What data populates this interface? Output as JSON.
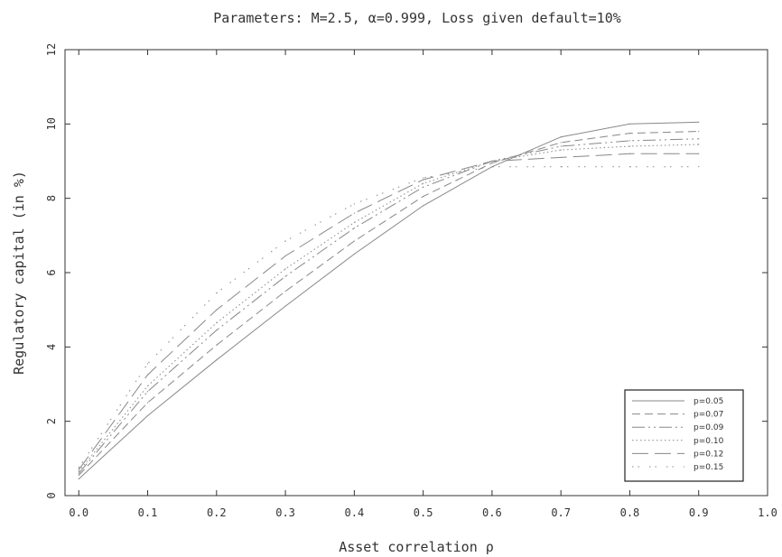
{
  "chart_data": {
    "type": "line",
    "title": "Parameters: M=2.5, α=0.999, Loss given default=10%",
    "xlabel": "Asset correlation ρ",
    "ylabel": "Regulatory capital (in %)",
    "xlim": [
      -0.02,
      1.0
    ],
    "ylim": [
      0,
      12
    ],
    "xticks": [
      "0.0",
      "0.1",
      "0.2",
      "0.3",
      "0.4",
      "0.5",
      "0.6",
      "0.7",
      "0.8",
      "0.9",
      "1.0"
    ],
    "yticks": [
      "0",
      "2",
      "4",
      "6",
      "8",
      "10",
      "12"
    ],
    "grid": false,
    "legend_position": "bottom-right",
    "x": [
      0.0,
      0.1,
      0.2,
      0.3,
      0.4,
      0.5,
      0.6,
      0.7,
      0.8,
      0.9
    ],
    "series": [
      {
        "name": "p=0.05",
        "values": [
          0.45,
          2.15,
          3.65,
          5.1,
          6.5,
          7.8,
          8.85,
          9.65,
          10.0,
          10.05
        ]
      },
      {
        "name": "p=0.07",
        "values": [
          0.55,
          2.5,
          4.05,
          5.5,
          6.85,
          8.05,
          8.95,
          9.5,
          9.75,
          9.8
        ]
      },
      {
        "name": "p=0.09",
        "values": [
          0.6,
          2.8,
          4.45,
          5.9,
          7.2,
          8.3,
          9.0,
          9.4,
          9.55,
          9.6
        ]
      },
      {
        "name": "p=0.10",
        "values": [
          0.65,
          2.95,
          4.65,
          6.1,
          7.35,
          8.4,
          9.0,
          9.3,
          9.4,
          9.45
        ]
      },
      {
        "name": "p=0.12",
        "values": [
          0.7,
          3.25,
          5.0,
          6.45,
          7.6,
          8.5,
          9.0,
          9.1,
          9.2,
          9.2
        ]
      },
      {
        "name": "p=0.15",
        "values": [
          0.75,
          3.55,
          5.45,
          6.85,
          7.85,
          8.55,
          8.85,
          8.85,
          8.85,
          8.85
        ]
      }
    ],
    "colors": {
      "line": "#888888",
      "axis": "#333333"
    }
  }
}
